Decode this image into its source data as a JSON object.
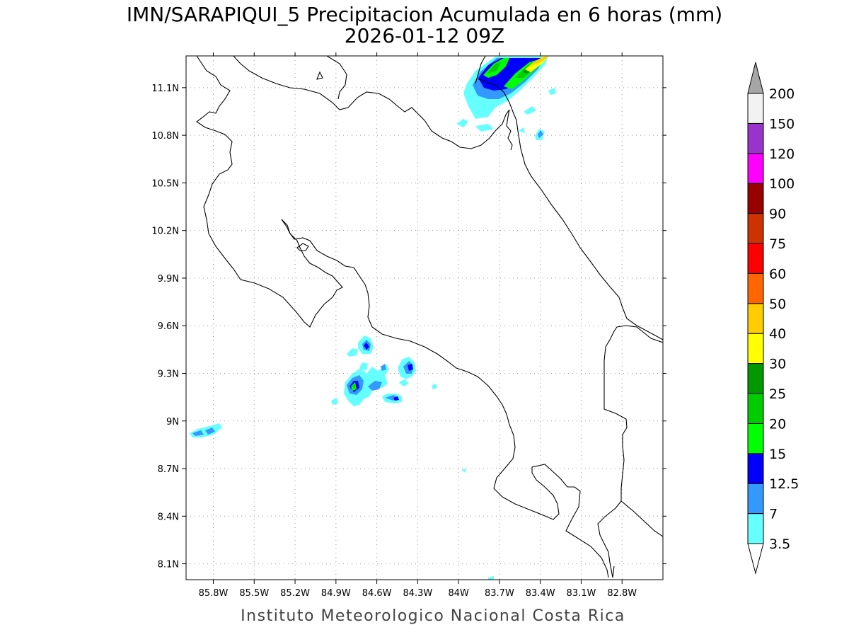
{
  "title": {
    "line1": "IMN/SARAPIQUI_5 Precipitacion Acumulada en 6 horas (mm)",
    "line2": "2026-01-12 09Z"
  },
  "footer": "Instituto Meteorologico Nacional Costa Rica",
  "axes": {
    "lon_range": [
      -86.0,
      -82.5
    ],
    "lat_range": [
      8.0,
      11.3
    ],
    "x_ticks": [
      {
        "value": -85.8,
        "label": "85.8W"
      },
      {
        "value": -85.5,
        "label": "85.5W"
      },
      {
        "value": -85.2,
        "label": "85.2W"
      },
      {
        "value": -84.9,
        "label": "84.9W"
      },
      {
        "value": -84.6,
        "label": "84.6W"
      },
      {
        "value": -84.3,
        "label": "84.3W"
      },
      {
        "value": -84.0,
        "label": "84W"
      },
      {
        "value": -83.7,
        "label": "83.7W"
      },
      {
        "value": -83.4,
        "label": "83.4W"
      },
      {
        "value": -83.1,
        "label": "83.1W"
      },
      {
        "value": -82.8,
        "label": "82.8W"
      }
    ],
    "y_ticks": [
      {
        "value": 11.1,
        "label": "11.1N"
      },
      {
        "value": 10.8,
        "label": "10.8N"
      },
      {
        "value": 10.5,
        "label": "10.5N"
      },
      {
        "value": 10.2,
        "label": "10.2N"
      },
      {
        "value": 9.9,
        "label": "9.9N"
      },
      {
        "value": 9.6,
        "label": "9.6N"
      },
      {
        "value": 9.3,
        "label": "9.3N"
      },
      {
        "value": 9.0,
        "label": "9N"
      },
      {
        "value": 8.7,
        "label": "8.7N"
      },
      {
        "value": 8.4,
        "label": "8.4N"
      },
      {
        "value": 8.1,
        "label": "8.1N"
      }
    ],
    "grid": "dotted"
  },
  "colorbar": {
    "labels": [
      "3.5",
      "7",
      "12.5",
      "15",
      "20",
      "25",
      "30",
      "40",
      "50",
      "60",
      "75",
      "90",
      "100",
      "120",
      "150",
      "200"
    ],
    "colors": [
      "#66ffff",
      "#3399ff",
      "#0000ff",
      "#00ff00",
      "#00cc00",
      "#009900",
      "#ffff00",
      "#ffcc00",
      "#ff6600",
      "#ff0000",
      "#cc3300",
      "#990000",
      "#ff00ff",
      "#9933cc",
      "#f2f2f2"
    ],
    "cap_high": "#a6a6a6",
    "cap_low": "#ffffff"
  },
  "colors": {
    "coast": "#000000",
    "grid": "#999999"
  },
  "chart_data": {
    "type": "heatmap",
    "variable": "Precipitacion Acumulada en 6 horas (mm)",
    "x_range": [
      -86.0,
      -82.5
    ],
    "y_range": [
      8.0,
      11.3
    ],
    "features": [
      {
        "lon": -83.55,
        "lat": 11.08,
        "max_level": "30-40",
        "note": "NE band near Nicaragua border"
      },
      {
        "lon": -84.75,
        "lat": 9.2,
        "max_level": "20-25",
        "note": "Pacific coast cluster"
      },
      {
        "lon": -84.35,
        "lat": 9.32,
        "max_level": "12.5-15"
      },
      {
        "lon": -84.65,
        "lat": 9.47,
        "max_level": "12.5-15"
      },
      {
        "lon": -84.55,
        "lat": 9.14,
        "max_level": "12.5-15"
      },
      {
        "lon": -85.85,
        "lat": 8.92,
        "max_level": "7-12.5"
      },
      {
        "lon": -83.42,
        "lat": 10.8,
        "max_level": "7-12.5"
      }
    ]
  }
}
